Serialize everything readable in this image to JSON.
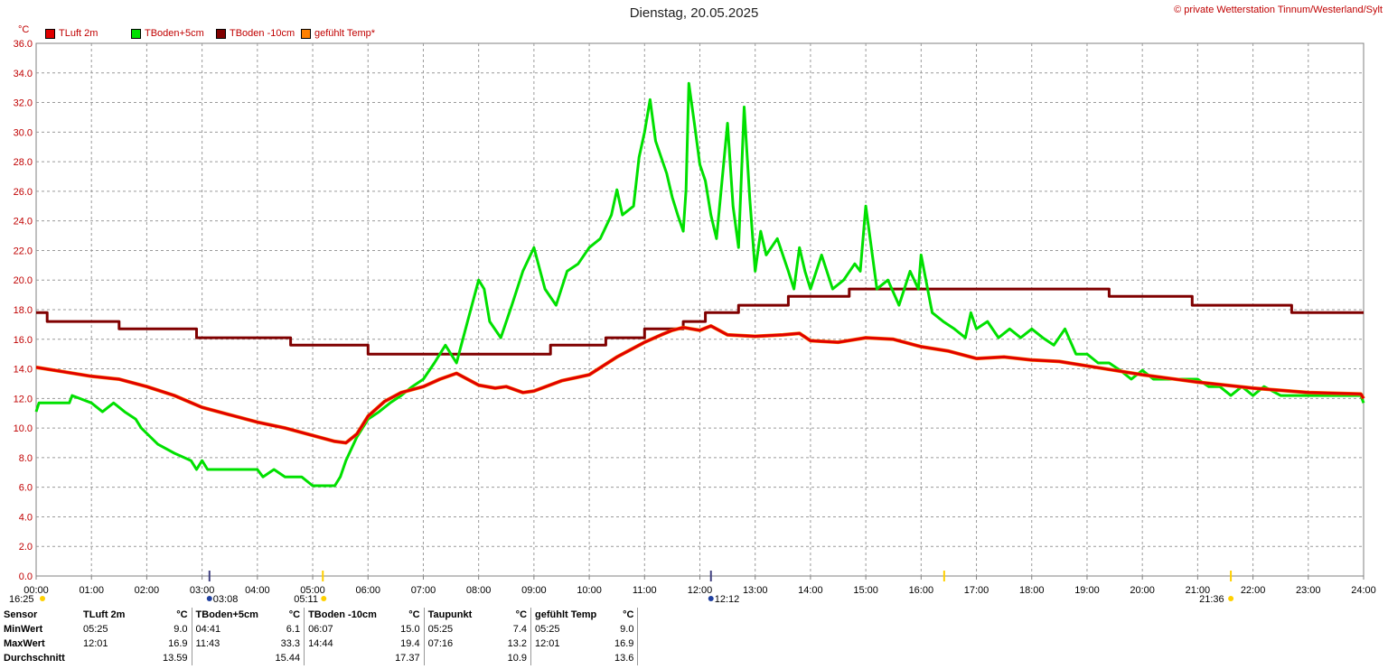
{
  "header": {
    "title": "Dienstag, 20.05.2025",
    "copyright": "© private Wetterstation Tinnum/Westerland/Sylt"
  },
  "legend": [
    {
      "label": "TLuft 2m",
      "color": "#e00000"
    },
    {
      "label": "TBoden+5cm",
      "color": "#00e000"
    },
    {
      "label": "TBoden -10cm",
      "color": "#800000"
    },
    {
      "label": "gefühlt Temp*",
      "color": "#ff8000"
    }
  ],
  "markers": [
    {
      "label": "16:25",
      "time": "16:25"
    },
    {
      "label": "03:08",
      "time": "03:08"
    },
    {
      "label": "05:11",
      "time": "05:11"
    },
    {
      "label": "12:12",
      "time": "12:12"
    },
    {
      "label": "21:36",
      "time": "21:36"
    }
  ],
  "chart_data": {
    "type": "line",
    "ylabel": "°C",
    "ylim": [
      0,
      36
    ],
    "yticks": [
      "0.0",
      "2.0",
      "4.0",
      "6.0",
      "8.0",
      "10.0",
      "12.0",
      "14.0",
      "16.0",
      "18.0",
      "20.0",
      "22.0",
      "24.0",
      "26.0",
      "28.0",
      "30.0",
      "32.0",
      "34.0",
      "36.0"
    ],
    "xlim": [
      0,
      24
    ],
    "xticks": [
      "00:00",
      "01:00",
      "02:00",
      "03:00",
      "04:00",
      "05:00",
      "06:00",
      "07:00",
      "08:00",
      "09:00",
      "10:00",
      "11:00",
      "12:00",
      "13:00",
      "14:00",
      "15:00",
      "16:00",
      "17:00",
      "18:00",
      "19:00",
      "20:00",
      "21:00",
      "22:00",
      "23:00",
      "24:00"
    ],
    "grid": true,
    "series": [
      {
        "name": "TBoden -10cm",
        "color": "#800000",
        "x": [
          0,
          0.2,
          0.2,
          1.5,
          1.5,
          2.9,
          2.9,
          4.6,
          4.6,
          6.0,
          6.0,
          9.3,
          9.3,
          10.3,
          10.3,
          11.0,
          11.0,
          11.7,
          11.7,
          12.1,
          12.1,
          12.7,
          12.7,
          13.6,
          13.6,
          14.7,
          14.7,
          15.1,
          15.1,
          19.4,
          19.4,
          20.9,
          20.9,
          22.7,
          22.7,
          24
        ],
        "y": [
          17.8,
          17.8,
          17.2,
          17.2,
          16.7,
          16.7,
          16.1,
          16.1,
          15.6,
          15.6,
          15.0,
          15.0,
          15.6,
          15.6,
          16.1,
          16.1,
          16.7,
          16.7,
          17.2,
          17.2,
          17.8,
          17.8,
          18.3,
          18.3,
          18.9,
          18.9,
          19.4,
          19.4,
          19.4,
          19.4,
          18.9,
          18.9,
          18.3,
          18.3,
          17.8,
          17.8
        ]
      },
      {
        "name": "TBoden+5cm",
        "color": "#00e000",
        "x": [
          0,
          0.05,
          0.1,
          0.6,
          0.65,
          1.0,
          1.2,
          1.4,
          1.6,
          1.8,
          1.9,
          2.2,
          2.5,
          2.8,
          2.9,
          3.0,
          3.1,
          3.2,
          4.0,
          4.1,
          4.3,
          4.5,
          4.8,
          5.0,
          5.3,
          5.4,
          5.5,
          5.6,
          5.8,
          6.0,
          6.2,
          6.4,
          6.6,
          6.8,
          7.0,
          7.2,
          7.4,
          7.6,
          7.8,
          8.0,
          8.1,
          8.2,
          8.4,
          8.6,
          8.8,
          9.0,
          9.2,
          9.4,
          9.6,
          9.8,
          10.0,
          10.2,
          10.4,
          10.5,
          10.6,
          10.8,
          10.9,
          11.0,
          11.1,
          11.2,
          11.4,
          11.5,
          11.6,
          11.7,
          11.75,
          11.8,
          11.9,
          12.0,
          12.1,
          12.2,
          12.3,
          12.4,
          12.5,
          12.6,
          12.7,
          12.8,
          12.9,
          13.0,
          13.1,
          13.2,
          13.4,
          13.6,
          13.7,
          13.8,
          13.9,
          14.0,
          14.2,
          14.4,
          14.6,
          14.8,
          14.9,
          15.0,
          15.2,
          15.4,
          15.6,
          15.8,
          15.95,
          16.0,
          16.2,
          16.4,
          16.6,
          16.8,
          16.9,
          17.0,
          17.2,
          17.4,
          17.6,
          17.8,
          18.0,
          18.2,
          18.4,
          18.6,
          18.8,
          19.0,
          19.2,
          19.4,
          19.6,
          19.8,
          20.0,
          20.2,
          20.4,
          20.6,
          20.8,
          21.0,
          21.2,
          21.4,
          21.6,
          21.8,
          22.0,
          22.2,
          22.5,
          23.0,
          23.5,
          23.95,
          24.0
        ],
        "y": [
          11.1,
          11.7,
          11.7,
          11.7,
          12.2,
          11.7,
          11.1,
          11.7,
          11.1,
          10.6,
          10.0,
          8.9,
          8.3,
          7.8,
          7.2,
          7.8,
          7.2,
          7.2,
          7.2,
          6.7,
          7.2,
          6.7,
          6.7,
          6.1,
          6.1,
          6.1,
          6.7,
          7.8,
          9.4,
          10.6,
          11.1,
          11.7,
          12.2,
          12.8,
          13.3,
          14.4,
          15.6,
          14.4,
          17.2,
          20.0,
          19.4,
          17.2,
          16.1,
          18.3,
          20.6,
          22.2,
          19.4,
          18.3,
          20.6,
          21.1,
          22.2,
          22.8,
          24.4,
          26.1,
          24.4,
          25.0,
          28.3,
          30.0,
          32.2,
          29.4,
          27.2,
          25.6,
          24.4,
          23.3,
          26.1,
          33.3,
          30.6,
          27.8,
          26.7,
          24.4,
          22.8,
          26.7,
          30.6,
          25.0,
          22.2,
          31.7,
          25.6,
          20.6,
          23.3,
          21.7,
          22.8,
          20.6,
          19.4,
          22.2,
          20.6,
          19.4,
          21.7,
          19.4,
          20.0,
          21.1,
          20.6,
          25.0,
          19.4,
          20.0,
          18.3,
          20.6,
          19.4,
          21.7,
          17.8,
          17.2,
          16.7,
          16.1,
          17.8,
          16.7,
          17.2,
          16.1,
          16.7,
          16.1,
          16.7,
          16.1,
          15.6,
          16.7,
          15.0,
          15.0,
          14.4,
          14.4,
          13.9,
          13.3,
          13.9,
          13.3,
          13.3,
          13.3,
          13.3,
          13.3,
          12.8,
          12.8,
          12.2,
          12.8,
          12.2,
          12.8,
          12.2,
          12.2,
          12.2,
          12.2,
          11.7
        ]
      },
      {
        "name": "gefühlt Temp*",
        "color": "#ff8000",
        "x": [
          0,
          0.5,
          1.0,
          1.5,
          2.0,
          2.5,
          3.0,
          3.5,
          4.0,
          4.5,
          5.0,
          5.4,
          5.6,
          5.8,
          6.0,
          6.3,
          6.6,
          7.0,
          7.3,
          7.6,
          8.0,
          8.3,
          8.5,
          8.8,
          9.0,
          9.5,
          10.0,
          10.5,
          11.0,
          11.3,
          11.5,
          11.7,
          12.0,
          12.2,
          12.5,
          13.0,
          13.5,
          13.8,
          14.0,
          14.5,
          15.0,
          15.5,
          16.0,
          16.5,
          17.0,
          17.5,
          18.0,
          18.5,
          19.0,
          19.5,
          20.0,
          21.0,
          22.0,
          23.0,
          23.95,
          24.0
        ],
        "y": [
          14.1,
          13.8,
          13.5,
          13.3,
          12.8,
          12.2,
          11.4,
          10.9,
          10.4,
          10.0,
          9.5,
          9.1,
          9.0,
          9.6,
          10.8,
          11.8,
          12.4,
          12.8,
          13.3,
          13.7,
          12.9,
          12.7,
          12.8,
          12.4,
          12.5,
          13.2,
          13.6,
          14.8,
          15.8,
          16.3,
          16.6,
          16.8,
          16.6,
          16.9,
          16.3,
          16.2,
          16.3,
          16.4,
          15.9,
          15.8,
          16.1,
          16.0,
          15.5,
          15.2,
          14.7,
          14.8,
          14.6,
          14.5,
          14.2,
          13.9,
          13.6,
          13.1,
          12.7,
          12.4,
          12.3,
          12.0
        ]
      },
      {
        "name": "TLuft 2m",
        "color": "#e00000",
        "x": [
          0,
          0.5,
          1.0,
          1.5,
          2.0,
          2.5,
          3.0,
          3.5,
          4.0,
          4.5,
          5.0,
          5.4,
          5.6,
          5.8,
          6.0,
          6.3,
          6.6,
          7.0,
          7.3,
          7.6,
          8.0,
          8.3,
          8.5,
          8.8,
          9.0,
          9.5,
          10.0,
          10.5,
          11.0,
          11.3,
          11.5,
          11.7,
          12.0,
          12.2,
          12.5,
          13.0,
          13.5,
          13.8,
          14.0,
          14.5,
          15.0,
          15.5,
          16.0,
          16.5,
          17.0,
          17.5,
          18.0,
          18.5,
          19.0,
          19.5,
          20.0,
          21.0,
          22.0,
          23.0,
          23.95,
          24.0
        ],
        "y": [
          14.1,
          13.8,
          13.5,
          13.3,
          12.8,
          12.2,
          11.4,
          10.9,
          10.4,
          10.0,
          9.5,
          9.1,
          9.0,
          9.6,
          10.8,
          11.8,
          12.4,
          12.8,
          13.3,
          13.7,
          12.9,
          12.7,
          12.8,
          12.4,
          12.5,
          13.2,
          13.6,
          14.8,
          15.8,
          16.3,
          16.6,
          16.8,
          16.6,
          16.9,
          16.3,
          16.2,
          16.3,
          16.4,
          15.9,
          15.8,
          16.1,
          16.0,
          15.5,
          15.2,
          14.7,
          14.8,
          14.6,
          14.5,
          14.2,
          13.9,
          13.6,
          13.1,
          12.7,
          12.4,
          12.3,
          12.0
        ]
      }
    ]
  },
  "stats": {
    "header": [
      "Sensor",
      "TLuft 2m",
      "°C",
      "TBoden+5cm",
      "°C",
      "TBoden -10cm",
      "°C",
      "Taupunkt",
      "°C",
      "gefühlt Temp",
      "°C"
    ],
    "rows": [
      {
        "label": "MinWert",
        "cells": [
          "05:25",
          "9.0",
          "04:41",
          "6.1",
          "06:07",
          "15.0",
          "05:25",
          "7.4",
          "05:25",
          "9.0"
        ]
      },
      {
        "label": "MaxWert",
        "cells": [
          "12:01",
          "16.9",
          "11:43",
          "33.3",
          "14:44",
          "19.4",
          "07:16",
          "13.2",
          "12:01",
          "16.9"
        ]
      },
      {
        "label": "Durchschnitt",
        "cells": [
          "",
          "13.59",
          "",
          "15.44",
          "",
          "17.37",
          "",
          "10.9",
          "",
          "13.6"
        ]
      }
    ]
  }
}
